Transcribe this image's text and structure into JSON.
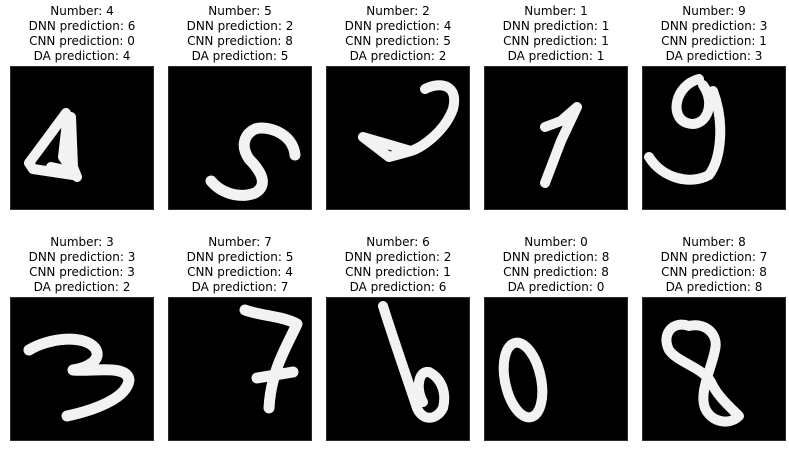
{
  "panels": [
    {
      "number": "Number: 4",
      "dnn": "DNN prediction: 6",
      "cnn": "CNN prediction: 0",
      "da": "DA prediction: 4",
      "digit": "4"
    },
    {
      "number": "Number: 5",
      "dnn": "DNN prediction: 2",
      "cnn": "CNN prediction: 8",
      "da": "DA prediction: 5",
      "digit": "5"
    },
    {
      "number": "Number: 2",
      "dnn": "DNN prediction: 4",
      "cnn": "CNN prediction: 5",
      "da": "DA prediction: 2",
      "digit": "2"
    },
    {
      "number": "Number: 1",
      "dnn": "DNN prediction: 1",
      "cnn": "CNN prediction: 1",
      "da": "DA prediction: 1",
      "digit": "1"
    },
    {
      "number": "Number: 9",
      "dnn": "DNN prediction: 3",
      "cnn": "CNN prediction: 1",
      "da": "DA prediction: 3",
      "digit": "9"
    },
    {
      "number": "Number: 3",
      "dnn": "DNN prediction: 3",
      "cnn": "CNN prediction: 3",
      "da": "DA prediction: 2",
      "digit": "3"
    },
    {
      "number": "Number: 7",
      "dnn": "DNN prediction: 5",
      "cnn": "CNN prediction: 4",
      "da": "DA prediction: 7",
      "digit": "7"
    },
    {
      "number": "Number: 6",
      "dnn": "DNN prediction: 2",
      "cnn": "CNN prediction: 1",
      "da": "DA prediction: 6",
      "digit": "6"
    },
    {
      "number": "Number: 0",
      "dnn": "DNN prediction: 8",
      "cnn": "CNN prediction: 8",
      "da": "DA prediction: 0",
      "digit": "0"
    },
    {
      "number": "Number: 8",
      "dnn": "DNN prediction: 7",
      "cnn": "CNN prediction: 8",
      "da": "DA prediction: 8",
      "digit": "8"
    }
  ],
  "colors": {
    "background": "#ffffff",
    "image_background": "#000000",
    "stroke": "#f2f2f2"
  }
}
